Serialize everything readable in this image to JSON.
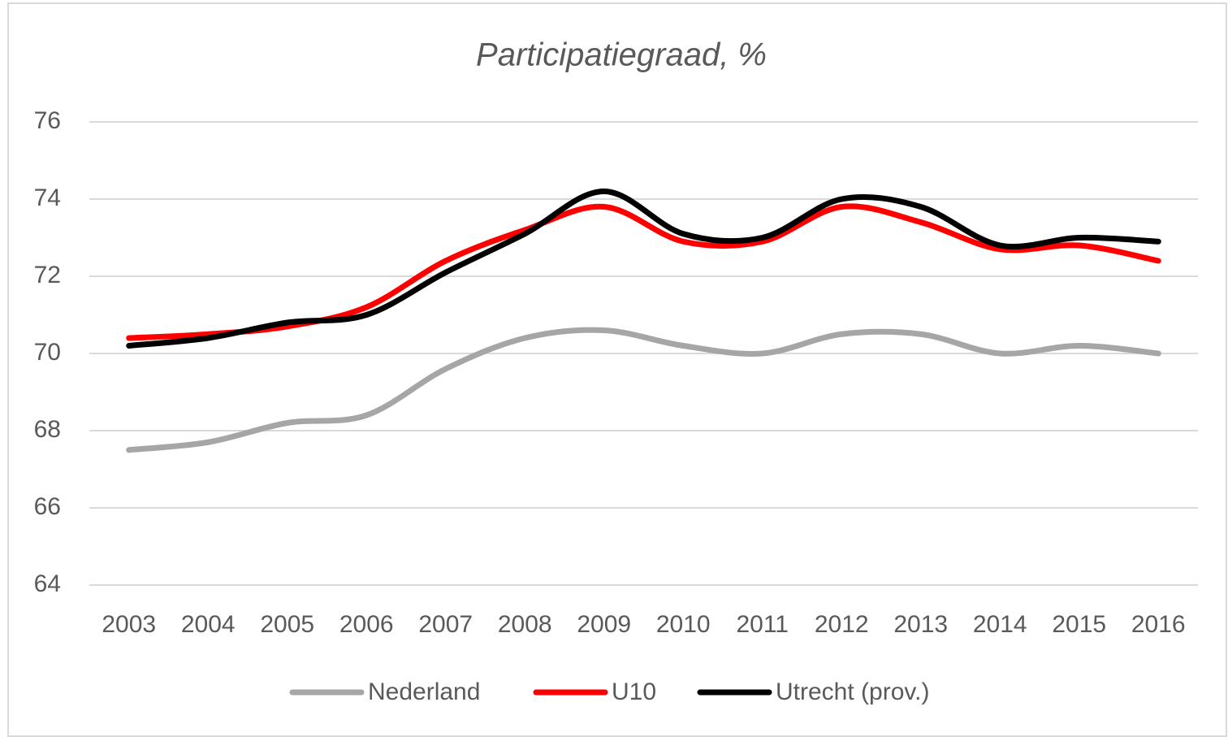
{
  "chart_data": {
    "type": "line",
    "title": "Participatiegraad, %",
    "categories": [
      "2003",
      "2004",
      "2005",
      "2006",
      "2007",
      "2008",
      "2009",
      "2010",
      "2011",
      "2012",
      "2013",
      "2014",
      "2015",
      "2016"
    ],
    "series": [
      {
        "name": "Nederland",
        "color": "#a6a6a6",
        "values": [
          67.5,
          67.7,
          68.2,
          68.4,
          69.6,
          70.4,
          70.6,
          70.2,
          70.0,
          70.5,
          70.5,
          70.0,
          70.2,
          70.0
        ]
      },
      {
        "name": "U10",
        "color": "#ff0000",
        "values": [
          70.4,
          70.5,
          70.7,
          71.2,
          72.4,
          73.2,
          73.8,
          72.9,
          72.9,
          73.8,
          73.4,
          72.7,
          72.8,
          72.4
        ]
      },
      {
        "name": "Utrecht (prov.)",
        "color": "#000000",
        "values": [
          70.2,
          70.4,
          70.8,
          71.0,
          72.1,
          73.1,
          74.2,
          73.1,
          73.0,
          74.0,
          73.8,
          72.8,
          73.0,
          72.9
        ]
      }
    ],
    "ylim": [
      64,
      76
    ],
    "yticks": [
      64,
      66,
      68,
      70,
      72,
      74,
      76
    ],
    "grid": true,
    "legend": "bottom"
  }
}
